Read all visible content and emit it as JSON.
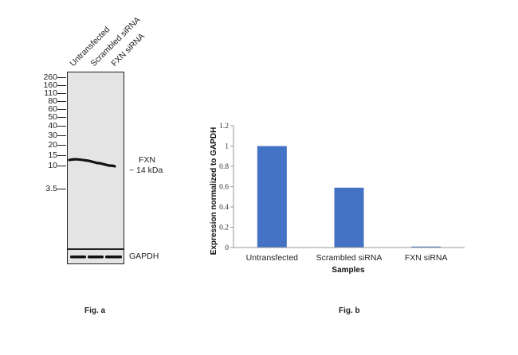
{
  "fig_a": {
    "caption": "Fig. a",
    "lanes": [
      "Untransfected",
      "Scrambled siRNA",
      "FXN siRNA"
    ],
    "mw_markers": [
      "260",
      "160",
      "110",
      "80",
      "60",
      "50",
      "40",
      "30",
      "20",
      "15",
      "10",
      "3.5"
    ],
    "target_label": "FXN",
    "target_size": "~ 14 kDa",
    "loading_control": "GAPDH"
  },
  "fig_b": {
    "caption": "Fig. b"
  },
  "chart_data": {
    "type": "bar",
    "categories": [
      "Untransfected",
      "Scrambled siRNA",
      "FXN siRNA"
    ],
    "values": [
      1.0,
      0.59,
      0.01
    ],
    "xlabel": "Samples",
    "ylabel": "Expression normalized to GAPDH",
    "ylim": [
      0,
      1.2
    ],
    "yticks": [
      "0",
      "0.2",
      "0.4",
      "0.6",
      "0.8",
      "1",
      "1.2"
    ],
    "bar_color": "#4472c4",
    "grid": false
  }
}
